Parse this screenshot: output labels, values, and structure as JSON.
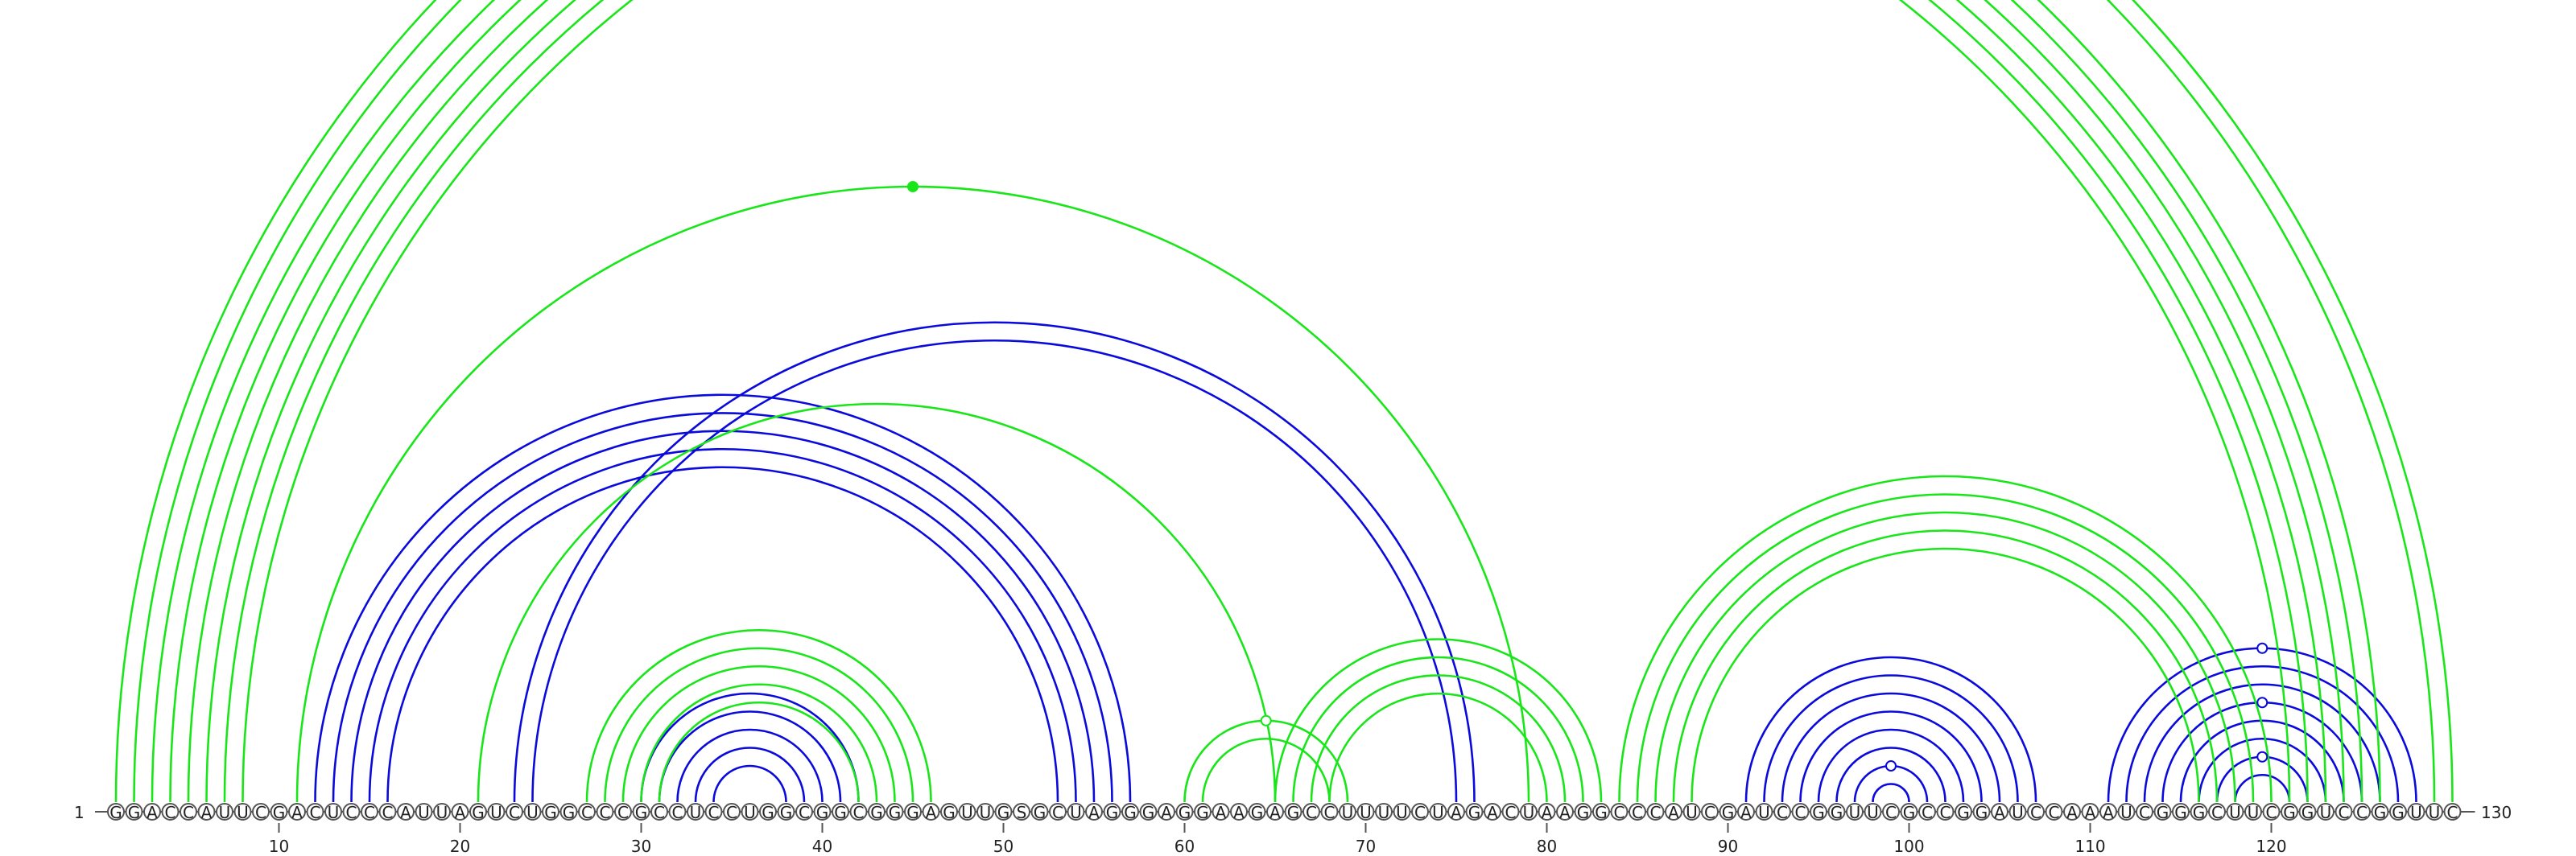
{
  "sequence": "GGACCAUUCGACUCCCAUUAGUCUGGCCCGCCUCCUGGCGGCGGGAGUUGSGCUAGGGAGGAAGAGCCUUUUCUAGACUAAGGCCCAUCGAUCCGGUUCGCCGGAUCCAAAUCGGGCUUCGGUCCGGUUC",
  "start_label": "1",
  "end_label": "130",
  "ticks": [
    "10",
    "20",
    "30",
    "40",
    "50",
    "60",
    "70",
    "80",
    "90",
    "100",
    "110",
    "120"
  ],
  "tick_positions": [
    10,
    20,
    30,
    40,
    50,
    60,
    70,
    80,
    90,
    100,
    110,
    120
  ],
  "colors": {
    "structure_a": "#0a0adc",
    "structure_b": "#19e619",
    "nucleotide_outline": "#555555"
  },
  "structure_a_pairs": [
    [
      12,
      57
    ],
    [
      13,
      56
    ],
    [
      14,
      55
    ],
    [
      15,
      54
    ],
    [
      16,
      53
    ],
    [
      23,
      76
    ],
    [
      24,
      75
    ],
    [
      30,
      42
    ],
    [
      31,
      41
    ],
    [
      32,
      40
    ],
    [
      33,
      39
    ],
    [
      34,
      38
    ],
    [
      91,
      107
    ],
    [
      92,
      106
    ],
    [
      93,
      105
    ],
    [
      94,
      104
    ],
    [
      95,
      103
    ],
    [
      96,
      102
    ],
    [
      97,
      101
    ],
    [
      98,
      100
    ],
    [
      111,
      128
    ],
    [
      112,
      127
    ],
    [
      113,
      126
    ],
    [
      114,
      125
    ],
    [
      115,
      124
    ],
    [
      116,
      123
    ],
    [
      117,
      122
    ],
    [
      118,
      121
    ]
  ],
  "structure_b_pairs": [
    [
      1,
      130
    ],
    [
      2,
      129
    ],
    [
      3,
      126
    ],
    [
      4,
      125
    ],
    [
      5,
      124
    ],
    [
      6,
      123
    ],
    [
      7,
      122
    ],
    [
      8,
      121
    ],
    [
      11,
      79
    ],
    [
      21,
      65
    ],
    [
      27,
      46
    ],
    [
      28,
      45
    ],
    [
      29,
      44
    ],
    [
      30,
      43
    ],
    [
      31,
      42
    ],
    [
      60,
      69
    ],
    [
      61,
      68
    ],
    [
      65,
      83
    ],
    [
      66,
      82
    ],
    [
      67,
      81
    ],
    [
      68,
      80
    ],
    [
      84,
      120
    ],
    [
      85,
      119
    ],
    [
      86,
      118
    ],
    [
      87,
      117
    ],
    [
      88,
      116
    ]
  ],
  "markers": [
    {
      "i": 1,
      "j": 130,
      "structure": "b",
      "filled": false
    },
    {
      "i": 11,
      "j": 79,
      "structure": "b",
      "filled": true
    },
    {
      "i": 60,
      "j": 69,
      "structure": "b",
      "filled": false
    },
    {
      "i": 97,
      "j": 101,
      "structure": "a",
      "filled": false
    },
    {
      "i": 111,
      "j": 128,
      "structure": "a",
      "filled": false
    },
    {
      "i": 114,
      "j": 125,
      "structure": "a",
      "filled": false
    },
    {
      "i": 117,
      "j": 122,
      "structure": "a",
      "filled": false
    }
  ]
}
